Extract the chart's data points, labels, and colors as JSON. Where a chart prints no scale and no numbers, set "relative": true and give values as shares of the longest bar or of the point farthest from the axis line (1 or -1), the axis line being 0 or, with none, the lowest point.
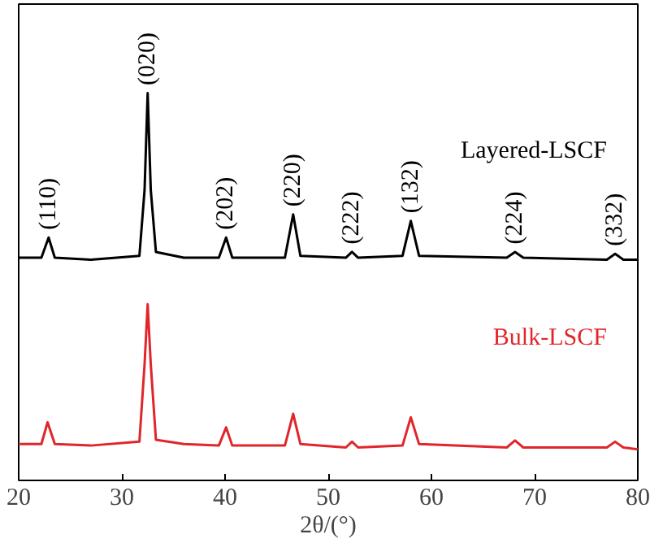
{
  "chart_data": {
    "type": "line",
    "xlabel": "2θ/(°)",
    "relative": true,
    "xlim": [
      20,
      80
    ],
    "xticks": [
      20,
      30,
      40,
      50,
      60,
      70,
      80
    ],
    "tick_labels": "x",
    "grid": false,
    "marker": "none",
    "line_style": "solid",
    "series": [
      {
        "name": "Layered-LSCF",
        "color": "#000000",
        "x": [
          20,
          22.2,
          22.9,
          23.5,
          27,
          31.7,
          32.2,
          32.5,
          32.8,
          33.3,
          36,
          39.4,
          40.1,
          40.7,
          45.8,
          46.6,
          47.3,
          51.7,
          52.3,
          52.9,
          57.2,
          58,
          58.8,
          67.3,
          68.1,
          68.9,
          77,
          77.8,
          78.6,
          80
        ],
        "values": [
          0.575,
          0.575,
          0.627,
          0.575,
          0.57,
          0.58,
          0.75,
          1.0,
          0.75,
          0.59,
          0.575,
          0.575,
          0.627,
          0.575,
          0.575,
          0.687,
          0.58,
          0.575,
          0.59,
          0.575,
          0.58,
          0.67,
          0.58,
          0.575,
          0.59,
          0.575,
          0.57,
          0.585,
          0.57,
          0.57
        ]
      },
      {
        "name": "Bulk-LSCF",
        "color": "#e0262b",
        "x": [
          20,
          22.2,
          22.8,
          23.5,
          27,
          31.7,
          32.2,
          32.5,
          32.8,
          33.3,
          36,
          39.4,
          40.1,
          40.7,
          45.8,
          46.6,
          47.3,
          51.7,
          52.3,
          52.9,
          57.2,
          58,
          58.8,
          67.3,
          68.1,
          68.9,
          77,
          77.8,
          78.6,
          80
        ],
        "values": [
          0.094,
          0.094,
          0.15,
          0.094,
          0.09,
          0.1,
          0.3,
          0.455,
          0.3,
          0.105,
          0.094,
          0.09,
          0.137,
          0.09,
          0.09,
          0.172,
          0.094,
          0.085,
          0.1,
          0.085,
          0.09,
          0.163,
          0.094,
          0.085,
          0.103,
          0.085,
          0.085,
          0.1,
          0.085,
          0.08
        ]
      }
    ],
    "annotations": [
      {
        "text": "(110)",
        "x": 22.9,
        "y": 0.627
      },
      {
        "text": "(020)",
        "x": 32.5,
        "y": 1.0
      },
      {
        "text": "(202)",
        "x": 40.1,
        "y": 0.627
      },
      {
        "text": "(220)",
        "x": 46.6,
        "y": 0.687
      },
      {
        "text": "(222)",
        "x": 52.3,
        "y": 0.59
      },
      {
        "text": "(132)",
        "x": 58,
        "y": 0.67
      },
      {
        "text": "(224)",
        "x": 68.1,
        "y": 0.59
      },
      {
        "text": "(332)",
        "x": 77.8,
        "y": 0.585
      }
    ]
  }
}
